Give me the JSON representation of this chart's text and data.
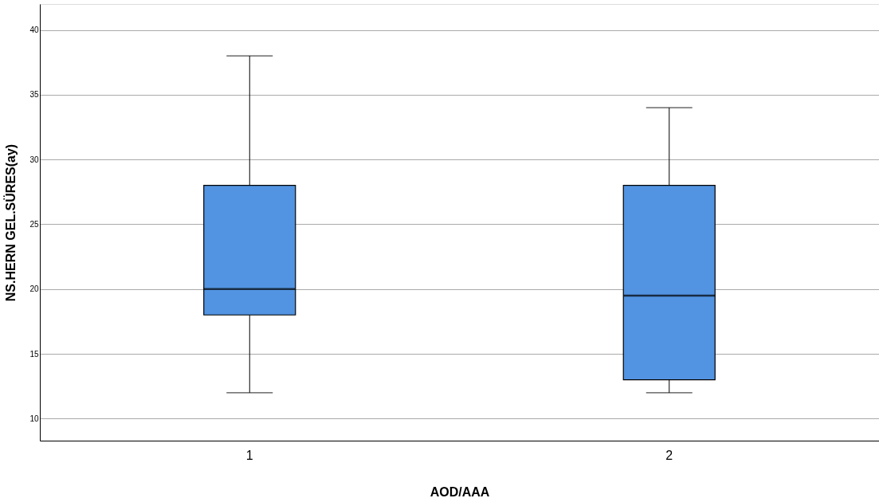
{
  "chart_data": {
    "type": "box",
    "xlabel": "AOD/AAA",
    "ylabel": "NS.HERN GEL.SÜRES(ay)",
    "categories": [
      "1",
      "2"
    ],
    "boxes": [
      {
        "low": 12,
        "q1": 18,
        "median": 20,
        "q3": 28,
        "high": 38
      },
      {
        "low": 12,
        "q1": 13,
        "median": 19.5,
        "q3": 28,
        "high": 34
      }
    ],
    "color": "#5294e2",
    "ylim": [
      8.3,
      42
    ],
    "yticks": [
      10,
      15,
      20,
      25,
      30,
      35,
      40
    ],
    "grid": "y"
  }
}
